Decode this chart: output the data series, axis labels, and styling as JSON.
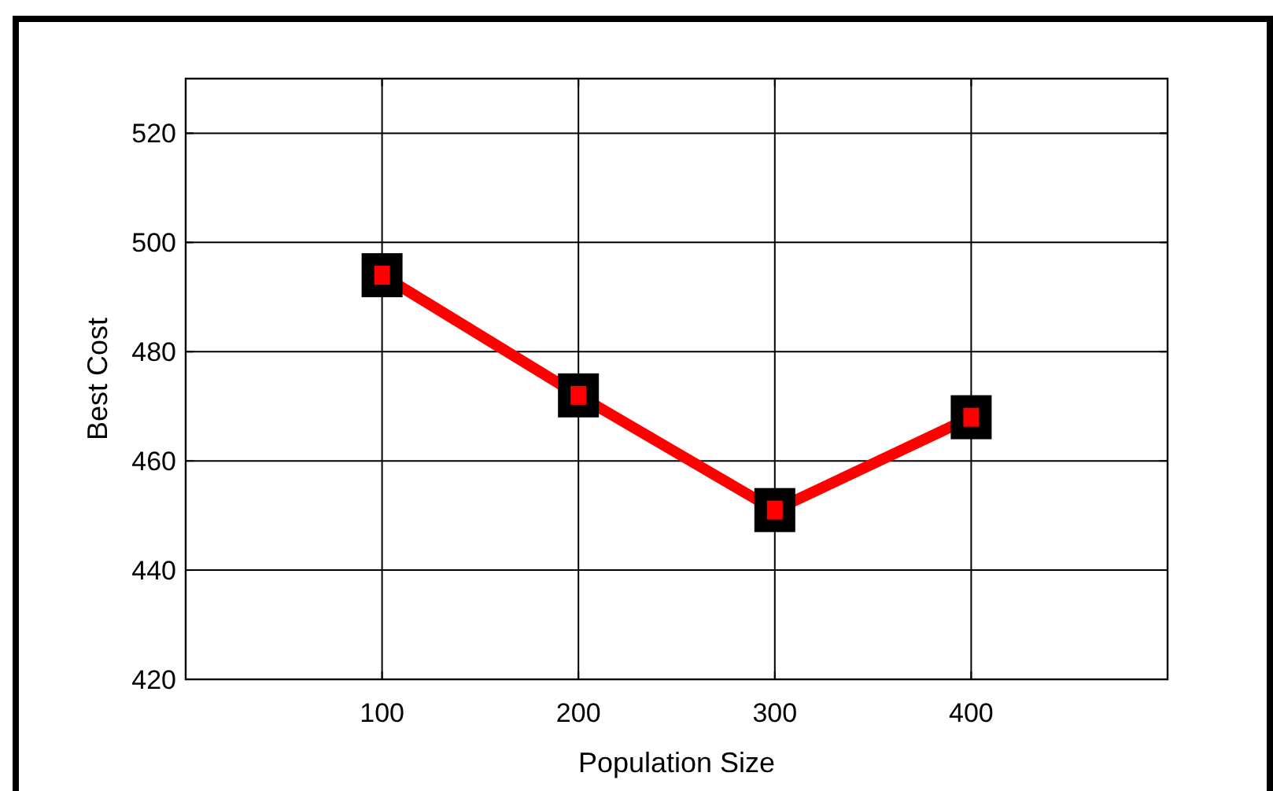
{
  "chart_data": {
    "type": "line",
    "xlabel": "Population Size",
    "ylabel": "Best Cost",
    "x": [
      100,
      200,
      300,
      400
    ],
    "series": [
      {
        "color": "#ff0000",
        "values": [
          494,
          472,
          451,
          468
        ]
      }
    ],
    "xlim": [
      0,
      500
    ],
    "xticks": [
      100,
      200,
      300,
      400
    ],
    "ylim": [
      420,
      530
    ],
    "yticks": [
      420,
      440,
      460,
      480,
      500,
      520
    ],
    "grid": true,
    "marker": "square",
    "line_style": "solid"
  }
}
